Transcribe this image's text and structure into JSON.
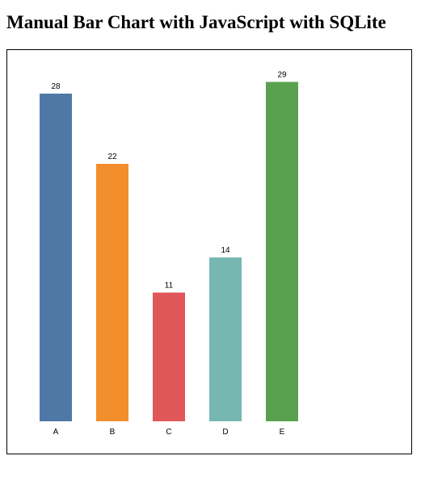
{
  "page": {
    "title": "Manual Bar Chart with JavaScript with SQLite"
  },
  "chart_data": {
    "type": "bar",
    "categories": [
      "A",
      "B",
      "C",
      "D",
      "E"
    ],
    "values": [
      28,
      22,
      11,
      14,
      29
    ],
    "colors": [
      "#4e79a7",
      "#f28e2b",
      "#e15759",
      "#76b7b2",
      "#59a14f"
    ],
    "data_labels": true,
    "grid": false,
    "legend": "none",
    "title": "",
    "xlabel": "",
    "ylabel": ""
  }
}
